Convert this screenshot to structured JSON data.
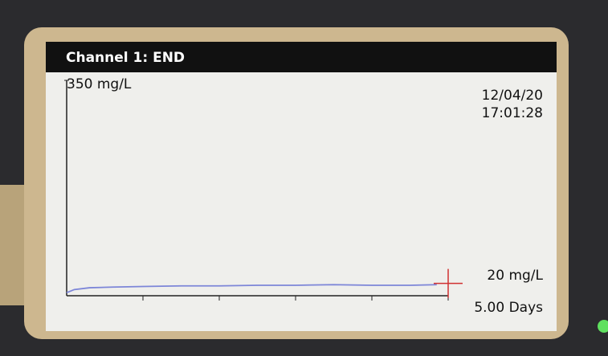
{
  "chart_data": {
    "type": "line",
    "title": "Channel 1: END",
    "date": "12/04/20",
    "time": "17:01:28",
    "x": [
      0,
      0.1,
      0.3,
      0.6,
      1,
      1.5,
      2,
      2.5,
      3,
      3.5,
      4,
      4.5,
      4.85
    ],
    "series": [
      {
        "color": "#7d86d8",
        "values": [
          5,
          10,
          13,
          14,
          15,
          16,
          16,
          17,
          17,
          18,
          17,
          17,
          18
        ]
      }
    ],
    "ylim": [
      0,
      350
    ],
    "yticks": [
      {
        "value": 350,
        "label": "350 mg/L"
      }
    ],
    "xlim": [
      0,
      5
    ],
    "xticks": [
      {
        "value": 5,
        "label": "5.00 Days"
      }
    ],
    "minor_xticks": [
      1,
      2,
      3,
      4
    ],
    "current": {
      "value": 20,
      "label": "20 mg/L",
      "color": "#d03030"
    }
  }
}
